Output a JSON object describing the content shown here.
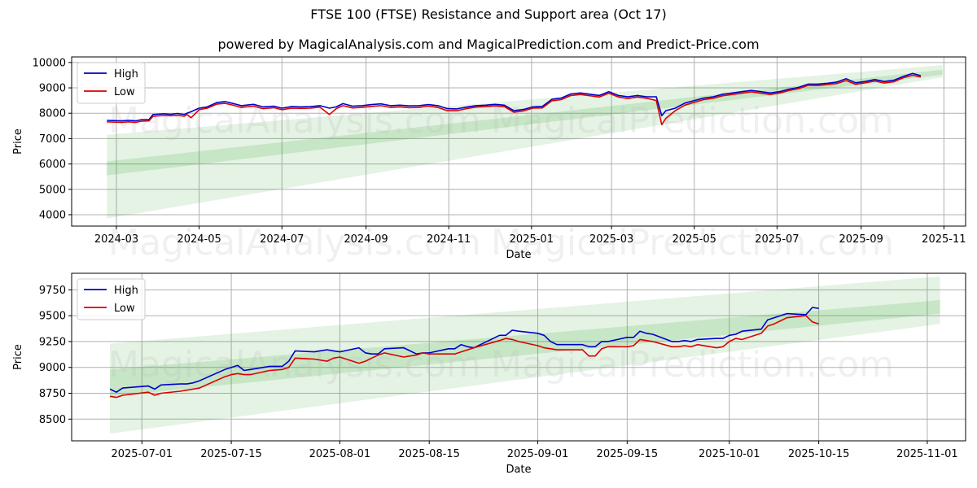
{
  "title": "FTSE 100 (FTSE) Resistance and Support area (Oct 17)",
  "subtitle": "powered by MagicalAnalysis.com and MagicalPrediction.com and Predict-Price.com",
  "watermarks": [
    "MagicalAnalysis.com",
    "MagicalPrediction.com"
  ],
  "colors": {
    "high": "#0000cc",
    "low": "#dd0000",
    "band": "#2ca02c",
    "grid": "#b0b0b0"
  },
  "chart_data": [
    {
      "type": "line",
      "name": "full-period",
      "xlabel": "Date",
      "ylabel": "Price",
      "xlim": [
        "2024-01-28",
        "2025-11-17"
      ],
      "ylim": [
        3550,
        10220
      ],
      "xticks": [
        "2024-03",
        "2024-05",
        "2024-07",
        "2024-09",
        "2024-11",
        "2025-01",
        "2025-03",
        "2025-05",
        "2025-07",
        "2025-09",
        "2025-11"
      ],
      "yticks": [
        4000,
        5000,
        6000,
        7000,
        8000,
        9000,
        10000
      ],
      "legend": {
        "position": "top-left",
        "entries": [
          "High",
          "Low"
        ]
      },
      "grid": true,
      "bands": [
        {
          "x": [
            "2024-02-23",
            "2025-10-31"
          ],
          "upper": [
            7150,
            9900
          ],
          "lower": [
            3850,
            9420
          ]
        },
        {
          "x": [
            "2024-02-23",
            "2025-10-31"
          ],
          "upper": [
            6100,
            9720
          ],
          "lower": [
            5550,
            9520
          ]
        }
      ],
      "series": [
        {
          "name": "High",
          "x": [
            "2024-02-23",
            "2024-03-05",
            "2024-03-10",
            "2024-03-15",
            "2024-03-20",
            "2024-03-25",
            "2024-03-28",
            "2024-04-05",
            "2024-04-10",
            "2024-04-15",
            "2024-04-20",
            "2024-04-22",
            "2024-04-25",
            "2024-05-01",
            "2024-05-07",
            "2024-05-14",
            "2024-05-20",
            "2024-05-25",
            "2024-06-01",
            "2024-06-10",
            "2024-06-17",
            "2024-06-25",
            "2024-07-01",
            "2024-07-08",
            "2024-07-15",
            "2024-07-22",
            "2024-07-29",
            "2024-08-05",
            "2024-08-10",
            "2024-08-15",
            "2024-08-22",
            "2024-08-29",
            "2024-09-05",
            "2024-09-12",
            "2024-09-19",
            "2024-09-26",
            "2024-10-03",
            "2024-10-10",
            "2024-10-17",
            "2024-10-24",
            "2024-10-31",
            "2024-11-07",
            "2024-11-14",
            "2024-11-21",
            "2024-11-28",
            "2024-12-05",
            "2024-12-12",
            "2024-12-19",
            "2024-12-26",
            "2025-01-02",
            "2025-01-09",
            "2025-01-16",
            "2025-01-23",
            "2025-01-30",
            "2025-02-06",
            "2025-02-13",
            "2025-02-20",
            "2025-02-27",
            "2025-03-06",
            "2025-03-13",
            "2025-03-20",
            "2025-03-27",
            "2025-04-03",
            "2025-04-07",
            "2025-04-10",
            "2025-04-17",
            "2025-04-24",
            "2025-05-01",
            "2025-05-08",
            "2025-05-15",
            "2025-05-22",
            "2025-05-29",
            "2025-06-05",
            "2025-06-12",
            "2025-06-19",
            "2025-06-26",
            "2025-07-03",
            "2025-07-10",
            "2025-07-17",
            "2025-07-24",
            "2025-07-31",
            "2025-08-07",
            "2025-08-14",
            "2025-08-21",
            "2025-08-28",
            "2025-09-04",
            "2025-09-11",
            "2025-09-18",
            "2025-09-25",
            "2025-10-02",
            "2025-10-09",
            "2025-10-15"
          ],
          "values": [
            7720,
            7700,
            7720,
            7700,
            7750,
            7750,
            7950,
            7980,
            7960,
            7990,
            7950,
            8000,
            8060,
            8200,
            8250,
            8420,
            8460,
            8400,
            8300,
            8350,
            8250,
            8280,
            8200,
            8260,
            8250,
            8260,
            8300,
            8200,
            8250,
            8380,
            8280,
            8300,
            8340,
            8370,
            8300,
            8320,
            8290,
            8300,
            8340,
            8300,
            8180,
            8170,
            8240,
            8300,
            8320,
            8350,
            8320,
            8100,
            8150,
            8250,
            8270,
            8550,
            8600,
            8760,
            8800,
            8750,
            8700,
            8850,
            8700,
            8650,
            8700,
            8650,
            8650,
            7900,
            8100,
            8200,
            8400,
            8500,
            8600,
            8650,
            8750,
            8800,
            8850,
            8900,
            8850,
            8800,
            8850,
            8950,
            9020,
            9150,
            9150,
            9180,
            9230,
            9360,
            9200,
            9250,
            9330,
            9250,
            9300,
            9450,
            9570,
            9480
          ]
        },
        {
          "name": "Low",
          "x": [
            "2024-02-23",
            "2024-03-05",
            "2024-03-10",
            "2024-03-15",
            "2024-03-20",
            "2024-03-25",
            "2024-03-28",
            "2024-04-05",
            "2024-04-10",
            "2024-04-15",
            "2024-04-20",
            "2024-04-22",
            "2024-04-25",
            "2024-05-01",
            "2024-05-07",
            "2024-05-14",
            "2024-05-20",
            "2024-05-25",
            "2024-06-01",
            "2024-06-10",
            "2024-06-17",
            "2024-06-25",
            "2024-07-01",
            "2024-07-08",
            "2024-07-15",
            "2024-07-22",
            "2024-07-29",
            "2024-08-05",
            "2024-08-10",
            "2024-08-15",
            "2024-08-22",
            "2024-08-29",
            "2024-09-05",
            "2024-09-12",
            "2024-09-19",
            "2024-09-26",
            "2024-10-03",
            "2024-10-10",
            "2024-10-17",
            "2024-10-24",
            "2024-10-31",
            "2024-11-07",
            "2024-11-14",
            "2024-11-21",
            "2024-11-28",
            "2024-12-05",
            "2024-12-12",
            "2024-12-19",
            "2024-12-26",
            "2025-01-02",
            "2025-01-09",
            "2025-01-16",
            "2025-01-23",
            "2025-01-30",
            "2025-02-06",
            "2025-02-13",
            "2025-02-20",
            "2025-02-27",
            "2025-03-06",
            "2025-03-13",
            "2025-03-20",
            "2025-03-27",
            "2025-04-03",
            "2025-04-07",
            "2025-04-10",
            "2025-04-17",
            "2025-04-24",
            "2025-05-01",
            "2025-05-08",
            "2025-05-15",
            "2025-05-22",
            "2025-05-29",
            "2025-06-05",
            "2025-06-12",
            "2025-06-19",
            "2025-06-26",
            "2025-07-03",
            "2025-07-10",
            "2025-07-17",
            "2025-07-24",
            "2025-07-31",
            "2025-08-07",
            "2025-08-14",
            "2025-08-21",
            "2025-08-28",
            "2025-09-04",
            "2025-09-11",
            "2025-09-18",
            "2025-09-25",
            "2025-10-02",
            "2025-10-09",
            "2025-10-15"
          ],
          "values": [
            7660,
            7640,
            7660,
            7640,
            7690,
            7700,
            7880,
            7910,
            7900,
            7920,
            7880,
            7950,
            7820,
            8140,
            8200,
            8360,
            8390,
            8330,
            8230,
            8280,
            8180,
            8220,
            8140,
            8200,
            8190,
            8200,
            8240,
            7950,
            8180,
            8300,
            8210,
            8230,
            8270,
            8300,
            8230,
            8250,
            8220,
            8230,
            8280,
            8230,
            8100,
            8100,
            8180,
            8240,
            8260,
            8290,
            8260,
            8040,
            8090,
            8200,
            8210,
            8490,
            8540,
            8700,
            8740,
            8690,
            8640,
            8790,
            8640,
            8580,
            8640,
            8590,
            8500,
            7550,
            7800,
            8100,
            8320,
            8430,
            8540,
            8590,
            8690,
            8740,
            8790,
            8840,
            8790,
            8740,
            8800,
            8900,
            8970,
            9100,
            9090,
            9130,
            9170,
            9290,
            9140,
            9200,
            9270,
            9190,
            9240,
            9400,
            9500,
            9420
          ]
        }
      ]
    },
    {
      "type": "line",
      "name": "recent-zoom",
      "xlabel": "Date",
      "ylabel": "Price",
      "xlim": [
        "2025-06-20",
        "2025-11-07"
      ],
      "ylim": [
        8290,
        9910
      ],
      "xticks": [
        "2025-07-01",
        "2025-07-15",
        "2025-08-01",
        "2025-08-15",
        "2025-09-01",
        "2025-09-15",
        "2025-10-01",
        "2025-10-15",
        "2025-11-01"
      ],
      "yticks": [
        8500,
        8750,
        9000,
        9250,
        9500,
        9750
      ],
      "legend": {
        "position": "top-left",
        "entries": [
          "High",
          "Low"
        ]
      },
      "grid": true,
      "bands": [
        {
          "x": [
            "2025-06-26",
            "2025-11-03"
          ],
          "upper": [
            9230,
            9880
          ],
          "lower": [
            8360,
            9420
          ]
        },
        {
          "x": [
            "2025-06-26",
            "2025-11-03"
          ],
          "upper": [
            8980,
            9650
          ],
          "lower": [
            8720,
            9520
          ]
        }
      ],
      "series": [
        {
          "name": "High",
          "x": [
            "2025-06-26",
            "2025-06-27",
            "2025-06-28",
            "2025-07-02",
            "2025-07-03",
            "2025-07-04",
            "2025-07-07",
            "2025-07-08",
            "2025-07-09",
            "2025-07-10",
            "2025-07-14",
            "2025-07-15",
            "2025-07-16",
            "2025-07-17",
            "2025-07-18",
            "2025-07-21",
            "2025-07-23",
            "2025-07-24",
            "2025-07-25",
            "2025-07-28",
            "2025-07-30",
            "2025-07-31",
            "2025-08-01",
            "2025-08-04",
            "2025-08-05",
            "2025-08-06",
            "2025-08-07",
            "2025-08-08",
            "2025-08-11",
            "2025-08-12",
            "2025-08-13",
            "2025-08-14",
            "2025-08-15",
            "2025-08-18",
            "2025-08-19",
            "2025-08-20",
            "2025-08-21",
            "2025-08-22",
            "2025-08-26",
            "2025-08-27",
            "2025-08-28",
            "2025-08-29",
            "2025-09-01",
            "2025-09-02",
            "2025-09-03",
            "2025-09-04",
            "2025-09-05",
            "2025-09-08",
            "2025-09-09",
            "2025-09-10",
            "2025-09-11",
            "2025-09-12",
            "2025-09-15",
            "2025-09-16",
            "2025-09-17",
            "2025-09-18",
            "2025-09-19",
            "2025-09-22",
            "2025-09-23",
            "2025-09-24",
            "2025-09-25",
            "2025-09-26",
            "2025-09-29",
            "2025-09-30",
            "2025-10-01",
            "2025-10-02",
            "2025-10-03",
            "2025-10-06",
            "2025-10-07",
            "2025-10-08",
            "2025-10-09",
            "2025-10-10",
            "2025-10-13",
            "2025-10-14",
            "2025-10-15"
          ],
          "values": [
            8790,
            8760,
            8800,
            8820,
            8790,
            8830,
            8840,
            8840,
            8850,
            8870,
            8980,
            9000,
            9020,
            8970,
            8980,
            9010,
            9010,
            9060,
            9160,
            9150,
            9170,
            9160,
            9150,
            9190,
            9140,
            9130,
            9130,
            9180,
            9190,
            9160,
            9130,
            9140,
            9140,
            9180,
            9180,
            9220,
            9200,
            9190,
            9310,
            9310,
            9360,
            9350,
            9330,
            9310,
            9250,
            9220,
            9220,
            9220,
            9200,
            9200,
            9250,
            9250,
            9290,
            9290,
            9350,
            9330,
            9320,
            9250,
            9250,
            9260,
            9250,
            9270,
            9280,
            9280,
            9310,
            9320,
            9350,
            9370,
            9460,
            9480,
            9500,
            9520,
            9510,
            9580,
            9570
          ]
        },
        {
          "name": "Low",
          "x": [
            "2025-06-26",
            "2025-06-27",
            "2025-06-28",
            "2025-07-02",
            "2025-07-03",
            "2025-07-04",
            "2025-07-07",
            "2025-07-08",
            "2025-07-09",
            "2025-07-10",
            "2025-07-14",
            "2025-07-15",
            "2025-07-16",
            "2025-07-17",
            "2025-07-18",
            "2025-07-21",
            "2025-07-23",
            "2025-07-24",
            "2025-07-25",
            "2025-07-28",
            "2025-07-30",
            "2025-07-31",
            "2025-08-01",
            "2025-08-04",
            "2025-08-05",
            "2025-08-06",
            "2025-08-07",
            "2025-08-08",
            "2025-08-11",
            "2025-08-12",
            "2025-08-13",
            "2025-08-14",
            "2025-08-15",
            "2025-08-18",
            "2025-08-19",
            "2025-08-20",
            "2025-08-21",
            "2025-08-22",
            "2025-08-26",
            "2025-08-27",
            "2025-08-28",
            "2025-08-29",
            "2025-09-01",
            "2025-09-02",
            "2025-09-03",
            "2025-09-04",
            "2025-09-05",
            "2025-09-08",
            "2025-09-09",
            "2025-09-10",
            "2025-09-11",
            "2025-09-12",
            "2025-09-15",
            "2025-09-16",
            "2025-09-17",
            "2025-09-18",
            "2025-09-19",
            "2025-09-22",
            "2025-09-23",
            "2025-09-24",
            "2025-09-25",
            "2025-09-26",
            "2025-09-29",
            "2025-09-30",
            "2025-10-01",
            "2025-10-02",
            "2025-10-03",
            "2025-10-06",
            "2025-10-07",
            "2025-10-08",
            "2025-10-09",
            "2025-10-10",
            "2025-10-13",
            "2025-10-14",
            "2025-10-15"
          ],
          "values": [
            8720,
            8710,
            8730,
            8760,
            8730,
            8750,
            8770,
            8780,
            8790,
            8800,
            8910,
            8930,
            8940,
            8930,
            8930,
            8970,
            8980,
            9000,
            9090,
            9080,
            9060,
            9090,
            9100,
            9040,
            9060,
            9090,
            9120,
            9140,
            9100,
            9110,
            9120,
            9140,
            9130,
            9130,
            9130,
            9150,
            9170,
            9190,
            9260,
            9280,
            9270,
            9250,
            9210,
            9190,
            9180,
            9170,
            9170,
            9170,
            9110,
            9110,
            9180,
            9200,
            9200,
            9210,
            9270,
            9260,
            9250,
            9200,
            9200,
            9210,
            9200,
            9220,
            9190,
            9200,
            9250,
            9280,
            9270,
            9330,
            9400,
            9420,
            9450,
            9480,
            9500,
            9440,
            9420
          ]
        }
      ]
    }
  ]
}
